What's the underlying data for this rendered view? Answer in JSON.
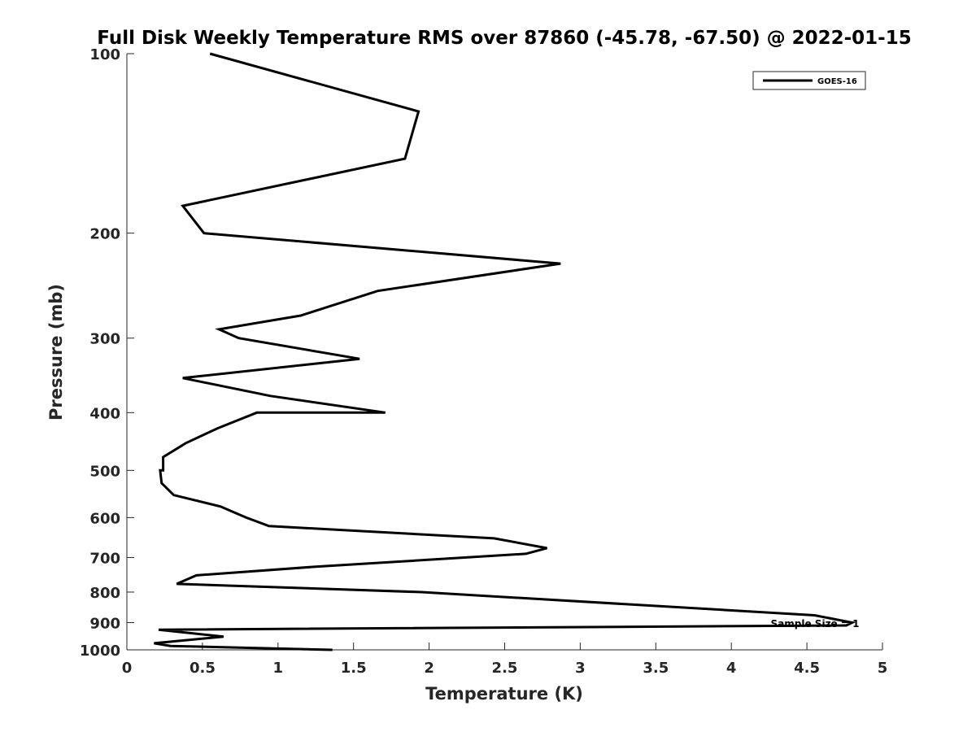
{
  "chart_data": {
    "type": "line",
    "title": "Full Disk Weekly Temperature RMS over 87860 (-45.78, -67.50) @ 2022-01-15",
    "xlabel": "Temperature (K)",
    "ylabel": "Pressure (mb)",
    "xlim": [
      0,
      5
    ],
    "ylim": [
      100,
      1000
    ],
    "y_scale": "log",
    "y_reversed": true,
    "x_ticks": [
      "0",
      "0.5",
      "1",
      "1.5",
      "2",
      "2.5",
      "3",
      "3.5",
      "4",
      "4.5",
      "5"
    ],
    "y_ticks": [
      "100",
      "200",
      "300",
      "400",
      "500",
      "600",
      "700",
      "800",
      "900",
      "1000"
    ],
    "grid": false,
    "legend_position": "top-right",
    "line_color": "#000000",
    "series": [
      {
        "name": "GOES-16",
        "x": [
          0.55,
          1.93,
          1.84,
          0.37,
          0.51,
          2.87,
          1.66,
          1.15,
          0.61,
          0.74,
          1.54,
          0.37,
          0.95,
          1.71,
          0.86,
          0.6,
          0.39,
          0.24,
          0.24,
          0.22,
          0.23,
          0.31,
          0.62,
          0.79,
          0.94,
          2.43,
          2.78,
          2.64,
          1.26,
          0.46,
          0.33,
          1.95,
          4.55,
          4.8,
          4.76,
          0.21,
          0.64,
          0.18,
          0.29,
          1.36
        ],
        "y": [
          100,
          125,
          150,
          180,
          200,
          225,
          250,
          275,
          290,
          300,
          325,
          350,
          375,
          400,
          400,
          425,
          450,
          475,
          500,
          500,
          525,
          550,
          575,
          600,
          620,
          650,
          675,
          690,
          725,
          750,
          775,
          800,
          875,
          900,
          910,
          925,
          950,
          975,
          985,
          1000
        ]
      }
    ],
    "annotations": [
      "Sample Size = 1"
    ]
  }
}
